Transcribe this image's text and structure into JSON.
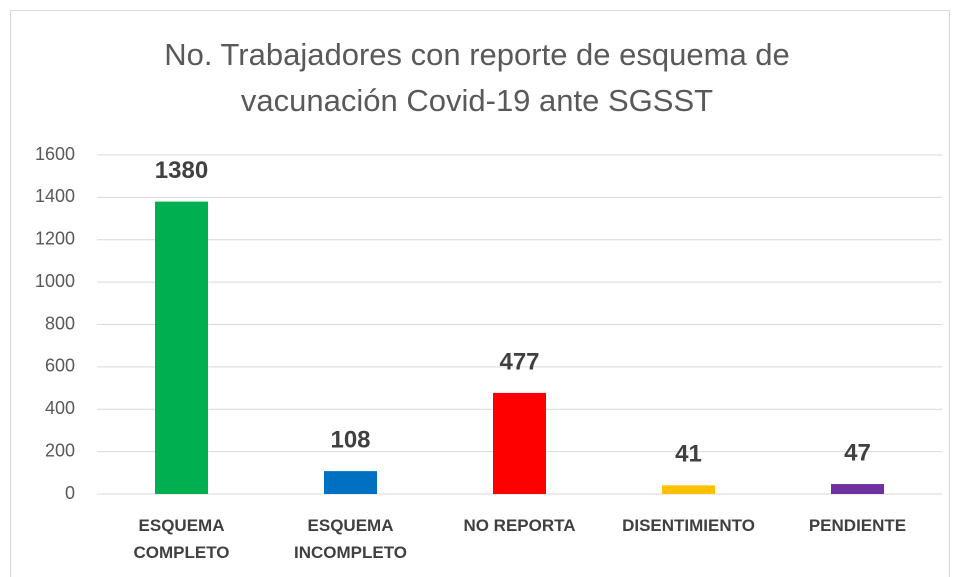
{
  "chart_data": {
    "type": "bar",
    "title": "No. Trabajadores con reporte de esquema de vacunación Covid-19 ante SGSST",
    "categories": [
      "ESQUEMA COMPLETO",
      "ESQUEMA INCOMPLETO",
      "NO REPORTA",
      "DISENTIMIENTO",
      "PENDIENTE"
    ],
    "values": [
      1380,
      108,
      477,
      41,
      47
    ],
    "colors": [
      "#00b050",
      "#0070c0",
      "#ff0000",
      "#ffc000",
      "#7030a0"
    ],
    "ylim": [
      0,
      1600
    ],
    "yticks": [
      0,
      200,
      400,
      600,
      800,
      1000,
      1200,
      1400,
      1600
    ],
    "grid": true
  }
}
